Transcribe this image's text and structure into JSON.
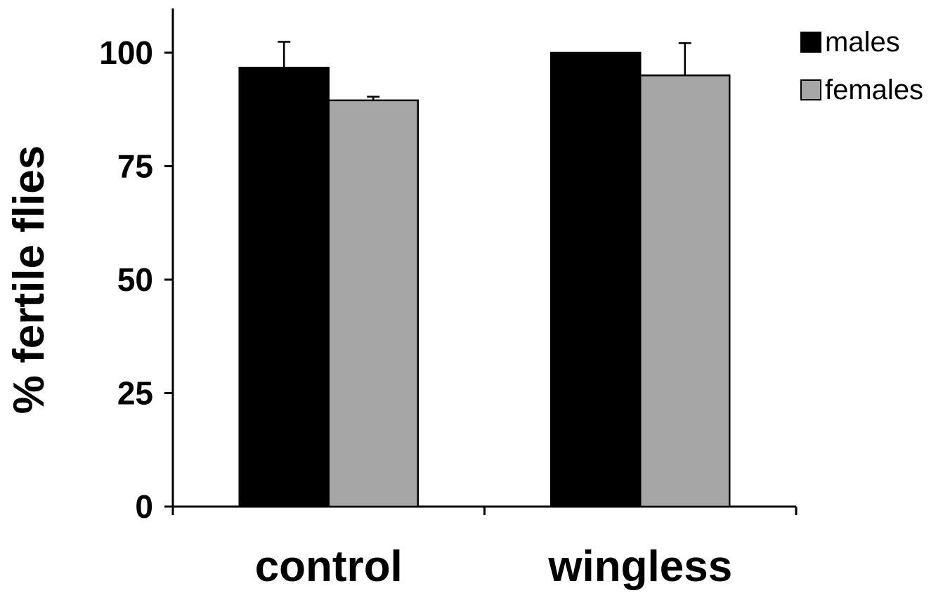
{
  "chart_data": {
    "type": "bar",
    "categories": [
      "control",
      "wingless"
    ],
    "series": [
      {
        "name": "males",
        "values": [
          96.7,
          100
        ],
        "errors": [
          5.7,
          0
        ],
        "color": "#000000"
      },
      {
        "name": "females",
        "values": [
          89.5,
          95
        ],
        "errors": [
          0.8,
          7.1
        ],
        "color": "#a6a6a6"
      }
    ],
    "ylabel": "% fertile flies",
    "xlabel": "",
    "ylim": [
      0,
      110
    ],
    "yticks": [
      0,
      25,
      50,
      75,
      100
    ],
    "ytick_labels": [
      "0",
      "25",
      "50",
      "75",
      "100"
    ],
    "legend_position": "top-right",
    "grid": false
  }
}
